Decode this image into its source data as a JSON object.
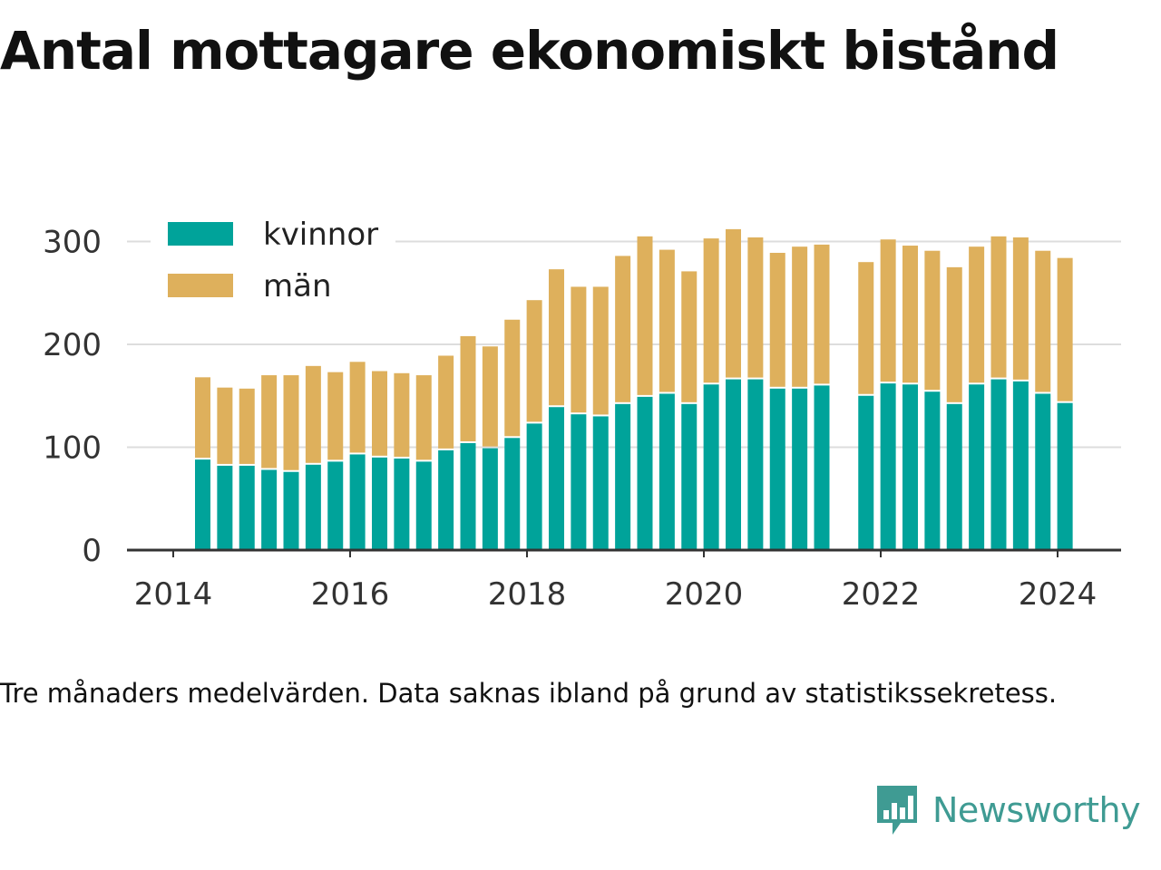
{
  "title": "Antal mottagare ekonomiskt bistånd",
  "caption": "Tre månaders medelvärden. Data saknas ibland på grund av statistikssekretess.",
  "brand": {
    "name": "Newsworthy",
    "icon": "newsworthy-logo-icon",
    "color": "#3f9b93"
  },
  "colors": {
    "kvinnor": "#00a39a",
    "man": "#deb05c",
    "grid": "#dddddd",
    "axis": "#333333"
  },
  "chart_data": {
    "type": "bar",
    "stacked": true,
    "x_ticks": [
      "2014",
      "2016",
      "2018",
      "2020",
      "2022",
      "2024"
    ],
    "y_ticks": [
      "0",
      "100",
      "200",
      "300"
    ],
    "ylim": [
      0,
      330
    ],
    "grid": true,
    "legend_position": "top-left",
    "x": [
      "2014-05",
      "2014-08",
      "2014-11",
      "2015-02",
      "2015-05",
      "2015-08",
      "2015-11",
      "2016-02",
      "2016-05",
      "2016-08",
      "2016-11",
      "2017-02",
      "2017-05",
      "2017-08",
      "2017-11",
      "2018-02",
      "2018-05",
      "2018-08",
      "2018-11",
      "2019-02",
      "2019-05",
      "2019-08",
      "2019-11",
      "2020-02",
      "2020-05",
      "2020-08",
      "2020-11",
      "2021-02",
      "2021-05",
      "2021-08",
      "2021-11",
      "2022-02",
      "2022-05",
      "2022-08",
      "2022-11",
      "2023-02",
      "2023-05",
      "2023-08",
      "2023-11",
      "2024-02"
    ],
    "series": [
      {
        "name": "kvinnor",
        "values": [
          88,
          82,
          82,
          78,
          76,
          83,
          86,
          93,
          90,
          89,
          86,
          97,
          104,
          99,
          109,
          123,
          139,
          132,
          130,
          142,
          149,
          152,
          142,
          161,
          166,
          166,
          157,
          157,
          160,
          null,
          150,
          162,
          161,
          154,
          142,
          161,
          166,
          164,
          152,
          143
        ]
      },
      {
        "name": "män",
        "values": [
          80,
          76,
          75,
          92,
          94,
          96,
          87,
          90,
          84,
          83,
          84,
          92,
          104,
          99,
          115,
          120,
          134,
          124,
          126,
          144,
          156,
          140,
          129,
          142,
          146,
          138,
          132,
          138,
          137,
          null,
          130,
          140,
          135,
          137,
          133,
          134,
          139,
          140,
          139,
          141
        ]
      }
    ]
  }
}
